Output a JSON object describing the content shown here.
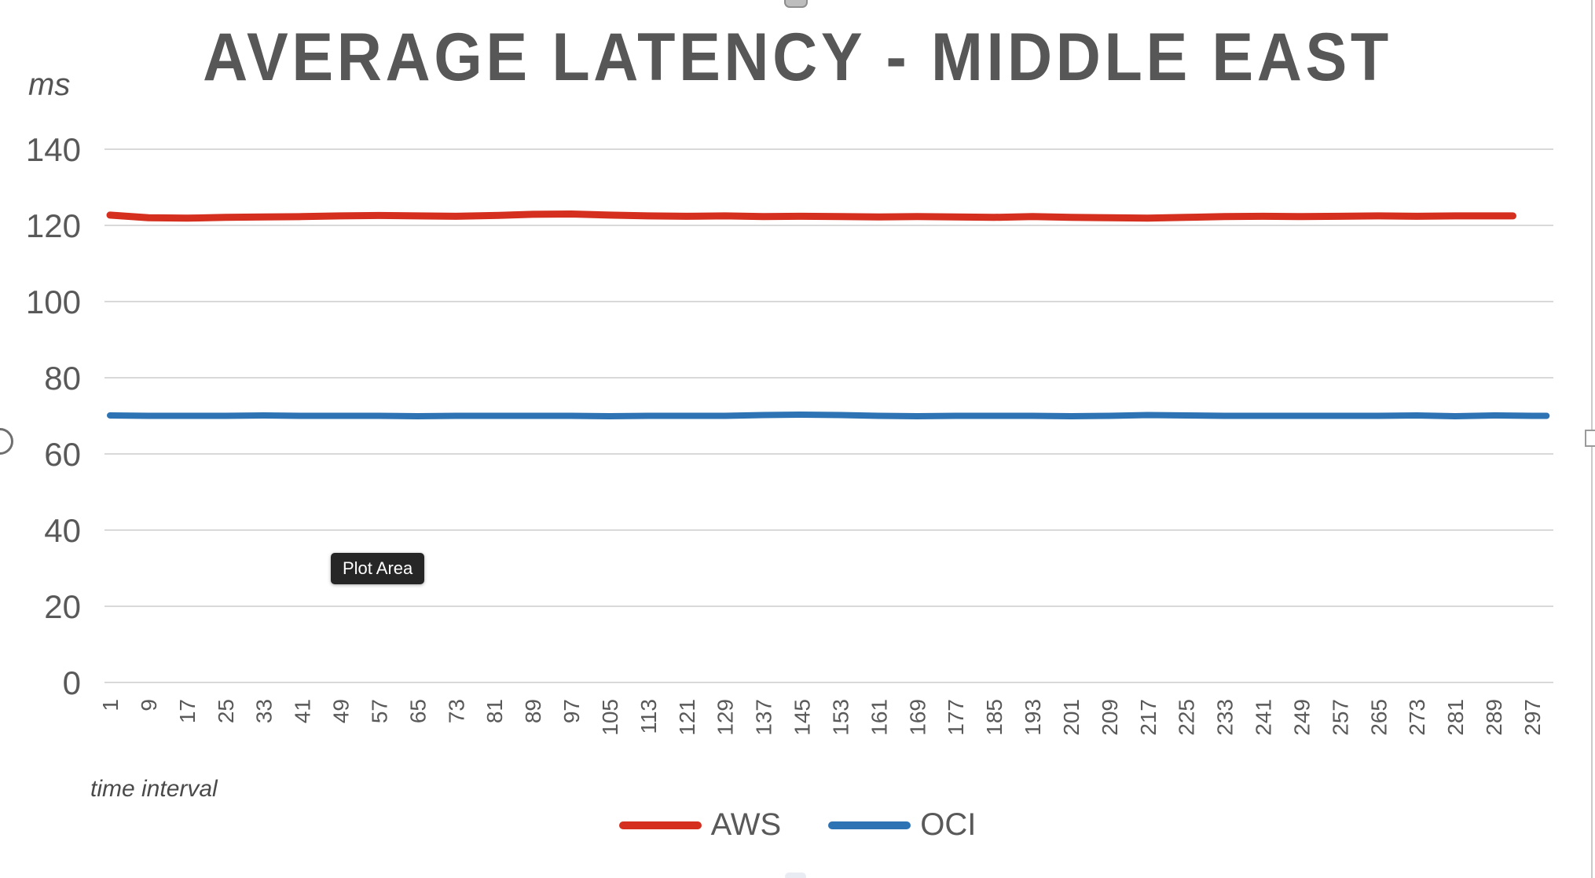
{
  "tooltip": {
    "label": "Plot Area"
  },
  "colors": {
    "text": "#595959",
    "grid": "#d9d9d9",
    "tooltip_bg": "#262626",
    "tooltip_text": "#ffffff",
    "aws_red": "#d5301f",
    "oci_blue": "#2e74b5"
  },
  "chart_data": {
    "type": "line",
    "title": "AVERAGE LATENCY - MIDDLE EAST",
    "ylabel": "ms",
    "xlabel": "time interval",
    "ylim": [
      0,
      140
    ],
    "yticks": [
      0,
      20,
      40,
      60,
      80,
      100,
      120,
      140
    ],
    "xtick_labels": [
      "1",
      "9",
      "17",
      "25",
      "33",
      "41",
      "49",
      "57",
      "65",
      "73",
      "81",
      "89",
      "97",
      "105",
      "113",
      "121",
      "129",
      "137",
      "145",
      "153",
      "161",
      "169",
      "177",
      "185",
      "193",
      "201",
      "209",
      "217",
      "225",
      "233",
      "241",
      "249",
      "257",
      "265",
      "273",
      "281",
      "289",
      "297"
    ],
    "grid": true,
    "legend_position": "bottom",
    "series": [
      {
        "name": "AWS",
        "color": "#d5301f",
        "x": [
          1,
          9,
          17,
          25,
          33,
          41,
          49,
          57,
          65,
          73,
          81,
          89,
          97,
          105,
          113,
          121,
          129,
          137,
          145,
          153,
          161,
          169,
          177,
          185,
          193,
          201,
          209,
          217,
          225,
          233,
          241,
          249,
          257,
          265,
          273,
          281,
          289,
          293
        ],
        "values": [
          122.7,
          122.0,
          121.9,
          122.1,
          122.2,
          122.3,
          122.5,
          122.6,
          122.5,
          122.4,
          122.6,
          122.9,
          123.0,
          122.7,
          122.5,
          122.4,
          122.5,
          122.3,
          122.4,
          122.3,
          122.2,
          122.3,
          122.2,
          122.1,
          122.3,
          122.1,
          122.0,
          121.9,
          122.1,
          122.3,
          122.4,
          122.3,
          122.4,
          122.5,
          122.4,
          122.5,
          122.5,
          122.5
        ]
      },
      {
        "name": "OCI",
        "color": "#2e74b5",
        "x": [
          1,
          9,
          17,
          25,
          33,
          41,
          49,
          57,
          65,
          73,
          81,
          89,
          97,
          105,
          113,
          121,
          129,
          137,
          145,
          153,
          161,
          169,
          177,
          185,
          193,
          201,
          209,
          217,
          225,
          233,
          241,
          249,
          257,
          265,
          273,
          281,
          289,
          297,
          300
        ],
        "values": [
          70.1,
          70.0,
          70.0,
          70.0,
          70.1,
          70.0,
          70.0,
          70.0,
          69.9,
          70.0,
          70.0,
          70.0,
          70.0,
          69.9,
          70.0,
          70.0,
          70.0,
          70.2,
          70.3,
          70.2,
          70.0,
          69.9,
          70.0,
          70.0,
          70.0,
          69.9,
          70.0,
          70.2,
          70.1,
          70.0,
          70.0,
          70.0,
          70.0,
          70.0,
          70.1,
          69.9,
          70.1,
          70.0,
          70.0
        ]
      }
    ]
  }
}
